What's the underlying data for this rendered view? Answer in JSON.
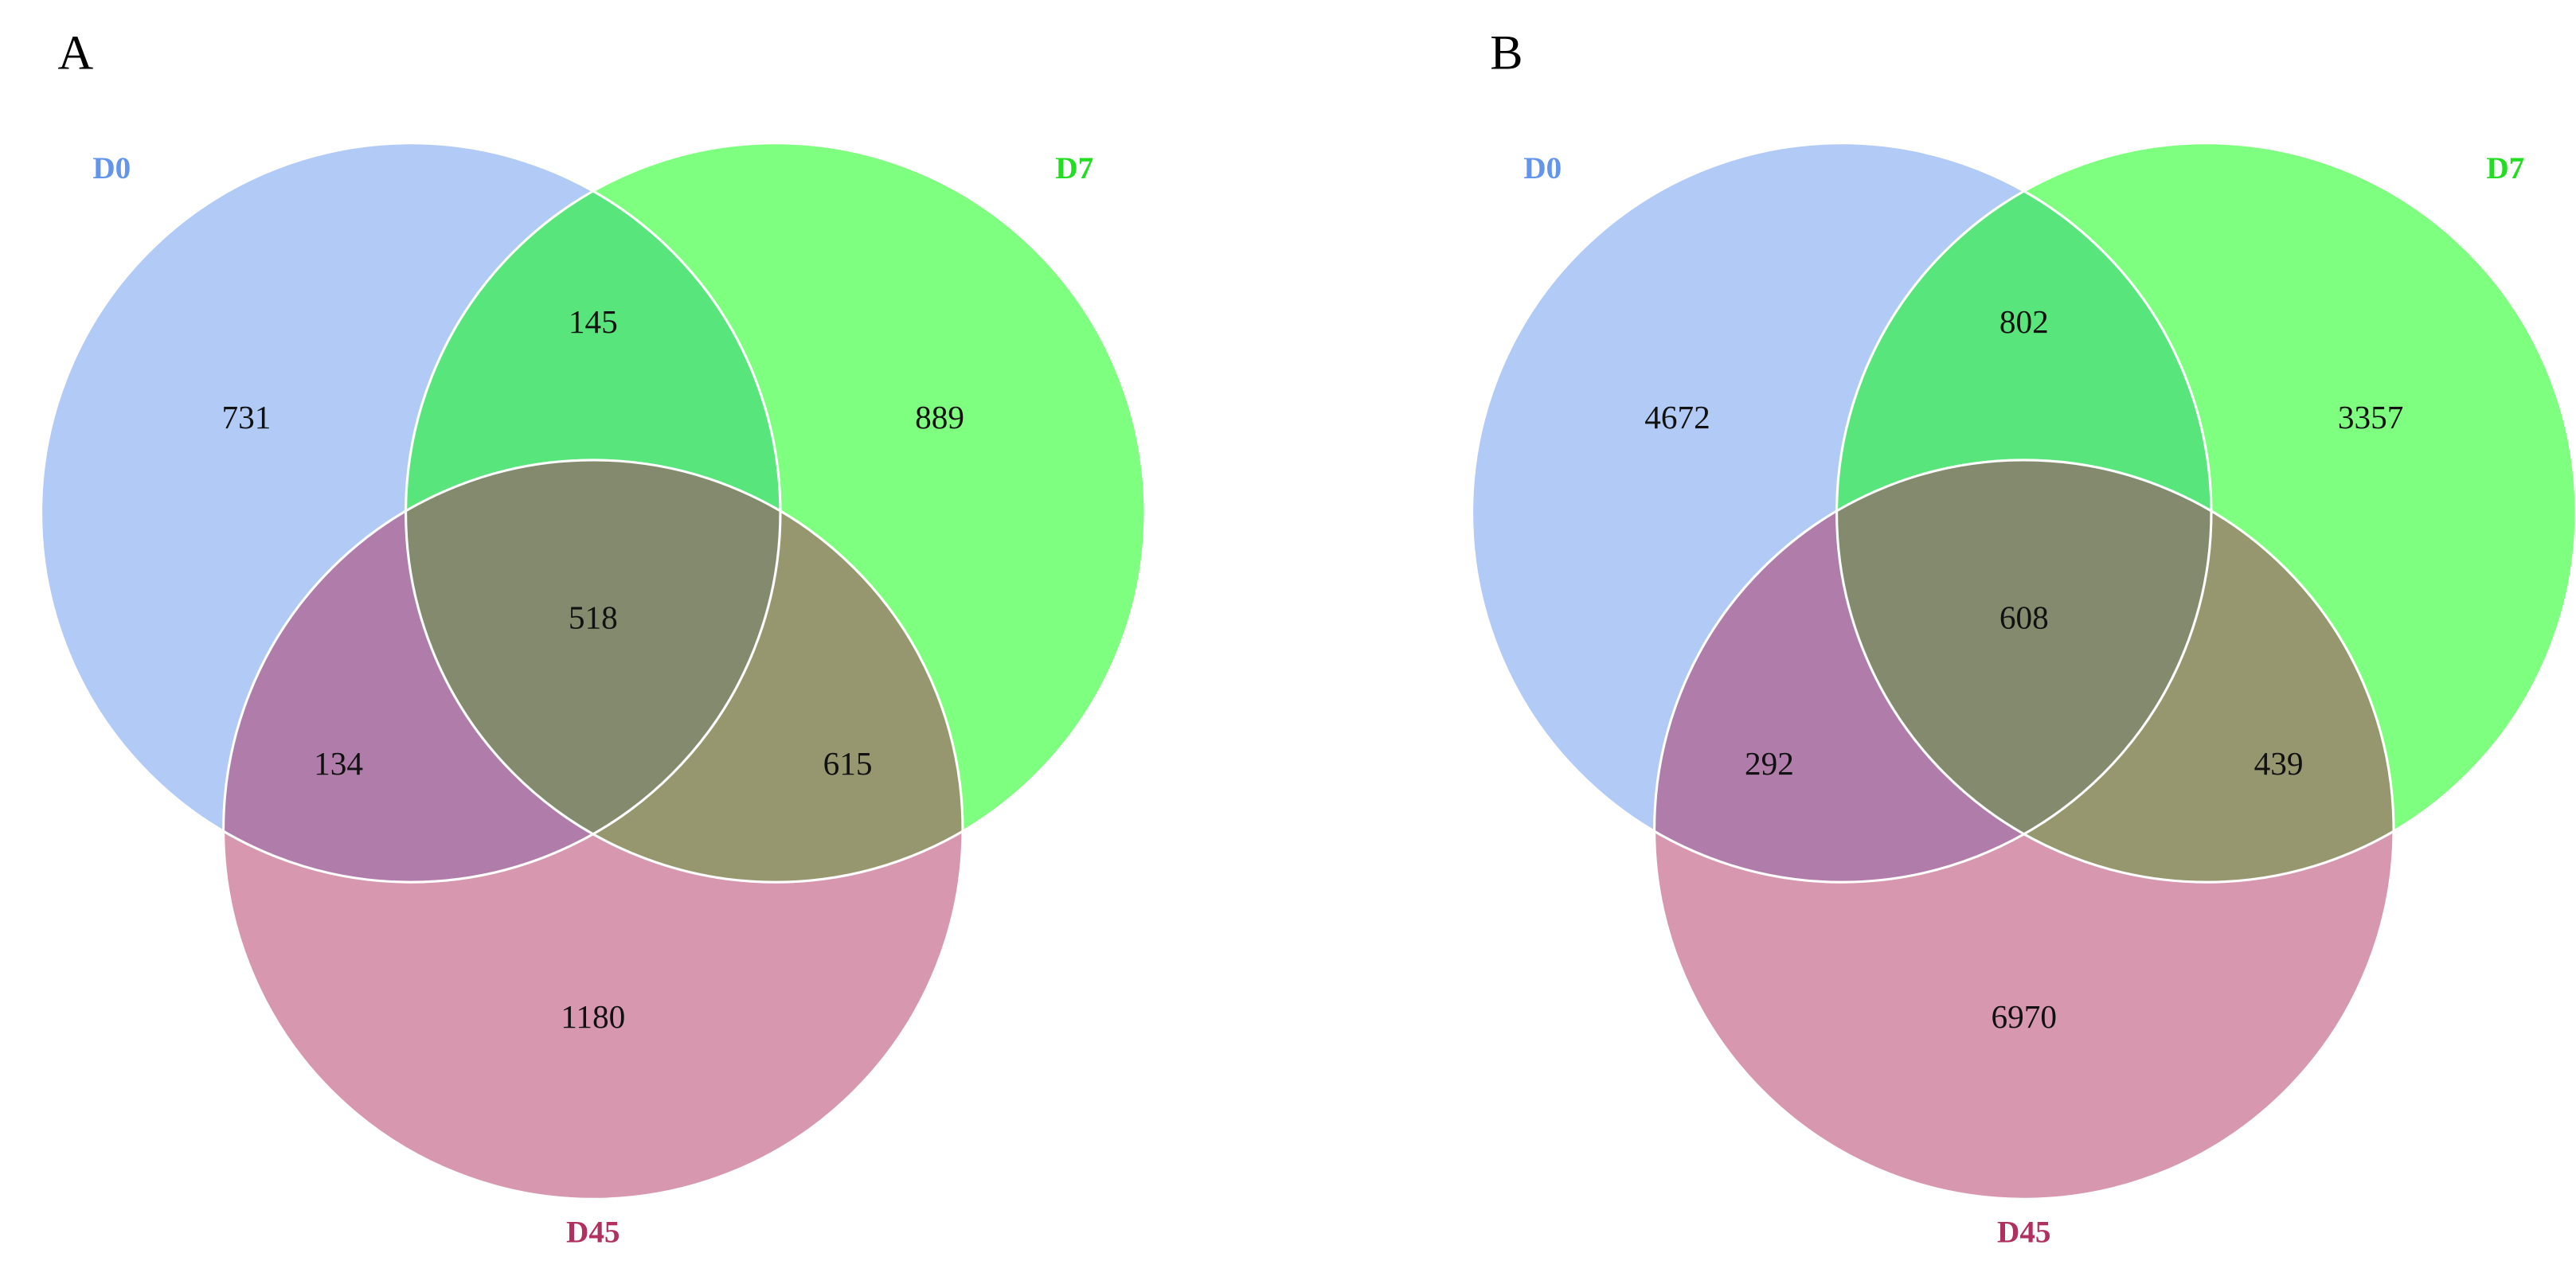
{
  "chart_data": [
    {
      "type": "venn",
      "title": "A",
      "sets": [
        {
          "name": "D0",
          "color": "#6495ed"
        },
        {
          "name": "D7",
          "color": "#00ff00"
        },
        {
          "name": "D45",
          "color": "#b03060"
        }
      ],
      "values": [
        731,
        889,
        1180,
        145,
        134,
        615,
        518
      ]
    },
    {
      "type": "venn",
      "title": "B",
      "sets": [
        {
          "name": "D0",
          "color": "#6495ed"
        },
        {
          "name": "D7",
          "color": "#00ff00"
        },
        {
          "name": "D45",
          "color": "#b03060"
        }
      ],
      "values": [
        4672,
        3357,
        6970,
        802,
        292,
        439,
        608
      ]
    }
  ]
}
